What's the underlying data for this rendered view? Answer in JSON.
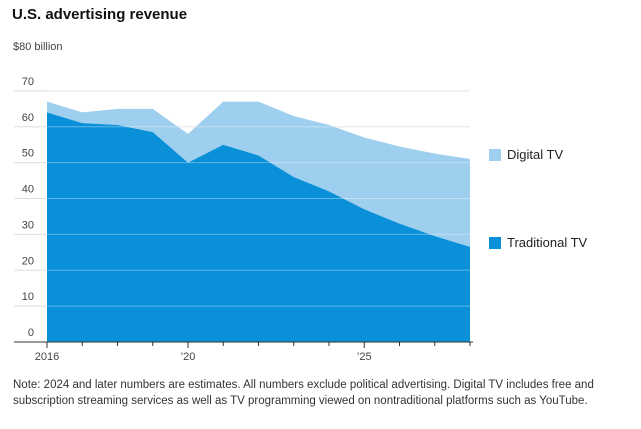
{
  "title": "U.S. advertising revenue",
  "note": "Note: 2024 and later numbers are estimates. All numbers exclude political advertising. Digital TV includes free and subscription streaming services as well as TV programming viewed on nontraditional platforms such as YouTube.",
  "colors": {
    "digital": "#9fcfef",
    "traditional": "#0a90d8",
    "grid": "#dddddd",
    "axis": "#333333"
  },
  "chart_data": {
    "type": "area",
    "stacked": true,
    "y_unit_label": "$80 billion",
    "ylim": [
      0,
      80
    ],
    "yticks": [
      0,
      10,
      20,
      30,
      40,
      50,
      60,
      70
    ],
    "xlim": [
      2016,
      2028
    ],
    "xticks": [
      {
        "value": 2016,
        "label": "2016"
      },
      {
        "value": 2020,
        "label": "’20"
      },
      {
        "value": 2025,
        "label": "’25"
      }
    ],
    "x": [
      2016,
      2017,
      2018,
      2019,
      2020,
      2021,
      2022,
      2023,
      2024,
      2025,
      2026,
      2027,
      2028
    ],
    "series": [
      {
        "name": "Traditional TV",
        "values": [
          64,
          61,
          60.5,
          58.5,
          50,
          55,
          52,
          46,
          42,
          37,
          33,
          29.5,
          26.5
        ]
      },
      {
        "name": "Digital TV",
        "values": [
          3,
          3,
          4.5,
          6.5,
          8,
          12,
          15,
          17,
          18.5,
          20,
          21.5,
          23,
          24.5
        ]
      }
    ],
    "legend": "right",
    "grid": true
  }
}
